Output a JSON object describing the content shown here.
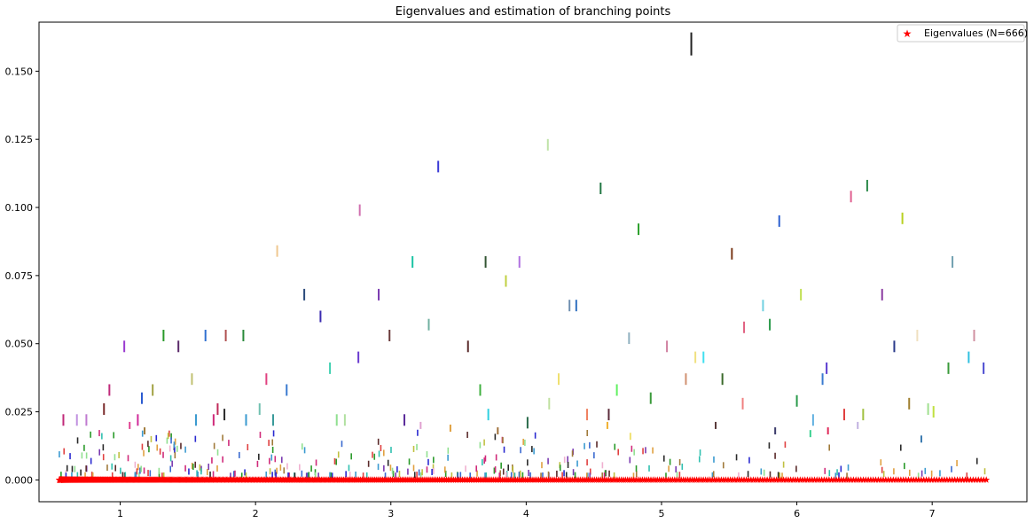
{
  "chart_data": {
    "type": "scatter",
    "title": "Eigenvalues and estimation of branching points",
    "xlabel": "",
    "ylabel": "",
    "xlim": [
      0.4,
      7.7
    ],
    "ylim": [
      -0.008,
      0.168
    ],
    "xticks": [
      1,
      2,
      3,
      4,
      5,
      6,
      7
    ],
    "yticks": [
      0.0,
      0.025,
      0.05,
      0.075,
      0.1,
      0.125,
      0.15
    ],
    "ytick_labels": [
      "0.000",
      "0.025",
      "0.050",
      "0.075",
      "0.100",
      "0.125",
      "0.150"
    ],
    "grid": false,
    "legend": {
      "position": "top-right",
      "entries": [
        "Eigenvalues (N=666)"
      ]
    },
    "series": [
      {
        "name": "Eigenvalues (N=666)",
        "marker": "star",
        "color": "#ff0000",
        "x_range": [
          0.55,
          7.4
        ],
        "y": 0.0,
        "count": 666
      }
    ],
    "branch_markers_note": "vertical colored dashes at estimated branching points",
    "branch_markers": [
      {
        "x": 5.22,
        "y": 0.16,
        "color": "#222222"
      },
      {
        "x": 4.16,
        "y": 0.123,
        "color": "#bfe3a8"
      },
      {
        "x": 3.35,
        "y": 0.115,
        "color": "#3a3ad6"
      },
      {
        "x": 4.55,
        "y": 0.107,
        "color": "#227744"
      },
      {
        "x": 6.52,
        "y": 0.108,
        "color": "#2c8a4a"
      },
      {
        "x": 6.4,
        "y": 0.104,
        "color": "#e06090"
      },
      {
        "x": 2.77,
        "y": 0.099,
        "color": "#d070b0"
      },
      {
        "x": 5.87,
        "y": 0.095,
        "color": "#2c60d0"
      },
      {
        "x": 6.78,
        "y": 0.096,
        "color": "#b8d020"
      },
      {
        "x": 4.83,
        "y": 0.092,
        "color": "#2ca02c"
      },
      {
        "x": 2.16,
        "y": 0.084,
        "color": "#f0c890"
      },
      {
        "x": 5.52,
        "y": 0.083,
        "color": "#7a3a1a"
      },
      {
        "x": 3.16,
        "y": 0.08,
        "color": "#19c3a3"
      },
      {
        "x": 3.7,
        "y": 0.08,
        "color": "#335533"
      },
      {
        "x": 3.95,
        "y": 0.08,
        "color": "#b070e0"
      },
      {
        "x": 7.15,
        "y": 0.08,
        "color": "#70a0b0"
      },
      {
        "x": 3.85,
        "y": 0.073,
        "color": "#c0d040"
      },
      {
        "x": 2.36,
        "y": 0.068,
        "color": "#2a4a7a"
      },
      {
        "x": 2.91,
        "y": 0.068,
        "color": "#7a3ab0"
      },
      {
        "x": 6.03,
        "y": 0.068,
        "color": "#c0e050"
      },
      {
        "x": 6.63,
        "y": 0.068,
        "color": "#8a3aa0"
      },
      {
        "x": 4.32,
        "y": 0.064,
        "color": "#7090b0"
      },
      {
        "x": 4.37,
        "y": 0.064,
        "color": "#3070c0"
      },
      {
        "x": 5.75,
        "y": 0.064,
        "color": "#70d0e0"
      },
      {
        "x": 2.48,
        "y": 0.06,
        "color": "#3a2ab0"
      },
      {
        "x": 3.28,
        "y": 0.057,
        "color": "#70b0a0"
      },
      {
        "x": 5.61,
        "y": 0.056,
        "color": "#e06080"
      },
      {
        "x": 5.8,
        "y": 0.057,
        "color": "#2a9a4a"
      },
      {
        "x": 1.32,
        "y": 0.053,
        "color": "#2a9a2a"
      },
      {
        "x": 1.63,
        "y": 0.053,
        "color": "#3070d0"
      },
      {
        "x": 1.78,
        "y": 0.053,
        "color": "#b05050"
      },
      {
        "x": 1.91,
        "y": 0.053,
        "color": "#2a8a3a"
      },
      {
        "x": 2.99,
        "y": 0.053,
        "color": "#6a3a3a"
      },
      {
        "x": 4.76,
        "y": 0.052,
        "color": "#90b0c0"
      },
      {
        "x": 6.89,
        "y": 0.053,
        "color": "#f0e0c0"
      },
      {
        "x": 7.31,
        "y": 0.053,
        "color": "#d090a0"
      },
      {
        "x": 1.03,
        "y": 0.049,
        "color": "#9a3ad0"
      },
      {
        "x": 1.43,
        "y": 0.049,
        "color": "#5a2a6a"
      },
      {
        "x": 3.57,
        "y": 0.049,
        "color": "#5a2a2a"
      },
      {
        "x": 5.04,
        "y": 0.049,
        "color": "#d080a0"
      },
      {
        "x": 6.72,
        "y": 0.049,
        "color": "#2a3a8a"
      },
      {
        "x": 2.76,
        "y": 0.045,
        "color": "#6a3ad0"
      },
      {
        "x": 5.25,
        "y": 0.045,
        "color": "#f0e080"
      },
      {
        "x": 5.31,
        "y": 0.045,
        "color": "#40e0f0"
      },
      {
        "x": 7.27,
        "y": 0.045,
        "color": "#30c0e0"
      },
      {
        "x": 2.55,
        "y": 0.041,
        "color": "#40d0b0"
      },
      {
        "x": 6.22,
        "y": 0.041,
        "color": "#5a3ad0"
      },
      {
        "x": 7.12,
        "y": 0.041,
        "color": "#3a9a3a"
      },
      {
        "x": 7.38,
        "y": 0.041,
        "color": "#4a4ad0"
      },
      {
        "x": 1.53,
        "y": 0.037,
        "color": "#c0c070"
      },
      {
        "x": 2.08,
        "y": 0.037,
        "color": "#e04080"
      },
      {
        "x": 4.24,
        "y": 0.037,
        "color": "#f0e070"
      },
      {
        "x": 5.18,
        "y": 0.037,
        "color": "#d09070"
      },
      {
        "x": 5.45,
        "y": 0.037,
        "color": "#3a6a2a"
      },
      {
        "x": 6.19,
        "y": 0.037,
        "color": "#3a7ad0"
      },
      {
        "x": 0.92,
        "y": 0.033,
        "color": "#c02a7a"
      },
      {
        "x": 1.24,
        "y": 0.033,
        "color": "#a0a040"
      },
      {
        "x": 2.23,
        "y": 0.033,
        "color": "#3a7ad0"
      },
      {
        "x": 3.66,
        "y": 0.033,
        "color": "#40b040"
      },
      {
        "x": 4.67,
        "y": 0.033,
        "color": "#60f060"
      },
      {
        "x": 1.16,
        "y": 0.03,
        "color": "#2a5ad0"
      },
      {
        "x": 4.92,
        "y": 0.03,
        "color": "#3a9a3a"
      },
      {
        "x": 6.0,
        "y": 0.029,
        "color": "#2a9a4a"
      },
      {
        "x": 0.58,
        "y": 0.022,
        "color": "#c02a7a"
      },
      {
        "x": 0.88,
        "y": 0.026,
        "color": "#7a2a2a"
      },
      {
        "x": 1.72,
        "y": 0.026,
        "color": "#c02a5a"
      },
      {
        "x": 1.77,
        "y": 0.024,
        "color": "#2a2a2a"
      },
      {
        "x": 2.03,
        "y": 0.026,
        "color": "#70c0b0"
      },
      {
        "x": 4.45,
        "y": 0.024,
        "color": "#f08060"
      },
      {
        "x": 4.61,
        "y": 0.024,
        "color": "#5a2a3a"
      },
      {
        "x": 6.35,
        "y": 0.024,
        "color": "#e04040"
      },
      {
        "x": 6.49,
        "y": 0.024,
        "color": "#a0c040"
      },
      {
        "x": 3.72,
        "y": 0.024,
        "color": "#30d0e0"
      },
      {
        "x": 6.83,
        "y": 0.028,
        "color": "#a08030"
      },
      {
        "x": 6.97,
        "y": 0.026,
        "color": "#a0e090"
      },
      {
        "x": 7.01,
        "y": 0.025,
        "color": "#c0e040"
      },
      {
        "x": 0.68,
        "y": 0.022,
        "color": "#c090e0"
      },
      {
        "x": 0.75,
        "y": 0.022,
        "color": "#c07ad0"
      },
      {
        "x": 1.13,
        "y": 0.022,
        "color": "#d02a9a"
      },
      {
        "x": 1.56,
        "y": 0.022,
        "color": "#3a9ad0"
      },
      {
        "x": 1.69,
        "y": 0.022,
        "color": "#d02a7a"
      },
      {
        "x": 1.93,
        "y": 0.022,
        "color": "#3a9ad0"
      },
      {
        "x": 2.13,
        "y": 0.022,
        "color": "#3a9a9a"
      },
      {
        "x": 2.6,
        "y": 0.022,
        "color": "#90e090"
      },
      {
        "x": 2.66,
        "y": 0.022,
        "color": "#b0e0a0"
      },
      {
        "x": 3.1,
        "y": 0.022,
        "color": "#5a2a9a"
      },
      {
        "x": 4.01,
        "y": 0.021,
        "color": "#2a6a4a"
      },
      {
        "x": 5.4,
        "y": 0.02,
        "color": "#5a3a3a"
      },
      {
        "x": 6.45,
        "y": 0.02,
        "color": "#c0b0e0"
      },
      {
        "x": 6.12,
        "y": 0.022,
        "color": "#60b0e0"
      },
      {
        "x": 4.17,
        "y": 0.028,
        "color": "#c0e0a0"
      },
      {
        "x": 5.6,
        "y": 0.028,
        "color": "#f08080"
      },
      {
        "x": 1.07,
        "y": 0.02,
        "color": "#e04090"
      },
      {
        "x": 1.18,
        "y": 0.018,
        "color": "#a07a3a"
      },
      {
        "x": 3.22,
        "y": 0.02,
        "color": "#e0a0d0"
      },
      {
        "x": 3.44,
        "y": 0.019,
        "color": "#e0a040"
      },
      {
        "x": 3.79,
        "y": 0.018,
        "color": "#a0703a"
      },
      {
        "x": 4.6,
        "y": 0.02,
        "color": "#f0b030"
      },
      {
        "x": 4.77,
        "y": 0.016,
        "color": "#f0e070"
      },
      {
        "x": 5.84,
        "y": 0.018,
        "color": "#3a3a6a"
      },
      {
        "x": 6.1,
        "y": 0.017,
        "color": "#3ad090"
      },
      {
        "x": 6.23,
        "y": 0.018,
        "color": "#e02a5a"
      },
      {
        "x": 6.92,
        "y": 0.015,
        "color": "#3a7ab0"
      }
    ]
  }
}
